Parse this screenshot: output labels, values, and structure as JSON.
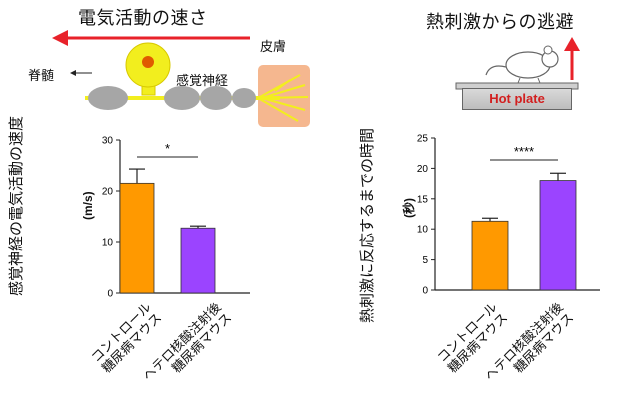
{
  "left_panel": {
    "header": "電気活動の速さ",
    "skin_label": "皮膚",
    "spine_label": "脊髄",
    "nerve_label": "感覚神経",
    "ylabel": "感覚神経の電気活動の速度",
    "unit": "(m/s)",
    "significance": "*",
    "categories": [
      "コントロール\n糖尿病マウス",
      "ヘテロ核酸注射後\n糖尿病マウス"
    ]
  },
  "right_panel": {
    "header": "熱刺激からの逃避",
    "hot_plate_label": "Hot plate",
    "ylabel": "熱刺激に反応するまでの時間",
    "unit": "(秒)",
    "significance": "****",
    "categories": [
      "コントロール\n糖尿病マウス",
      "ヘテロ核酸注射後\n糖尿病マウス"
    ]
  },
  "colors": {
    "control": "#ff9900",
    "treated": "#9b44ff",
    "arrow": "#e8222a",
    "nerve": "#f2ee1e",
    "axon": "#a6a6a6",
    "skin": "#f5b78f"
  },
  "chart_data": [
    {
      "type": "bar",
      "categories": [
        "コントロール\n糖尿病マウス",
        "ヘテロ核酸注射後\n糖尿病マウス"
      ],
      "values": [
        21.5,
        12.7
      ],
      "errors": [
        2.8,
        0.4
      ],
      "ylabel": "感覚神経の電気活動の速度 (m/s)",
      "ylim": [
        0,
        30
      ],
      "yticks": [
        0,
        10,
        20,
        30
      ],
      "significance": "*"
    },
    {
      "type": "bar",
      "categories": [
        "コントロール\n糖尿病マウス",
        "ヘテロ核酸注射後\n糖尿病マウス"
      ],
      "values": [
        11.3,
        18.0
      ],
      "errors": [
        0.5,
        1.2
      ],
      "ylabel": "熱刺激に反応するまでの時間 (秒)",
      "ylim": [
        0,
        25
      ],
      "yticks": [
        0,
        5,
        10,
        15,
        20,
        25
      ],
      "significance": "****"
    }
  ]
}
